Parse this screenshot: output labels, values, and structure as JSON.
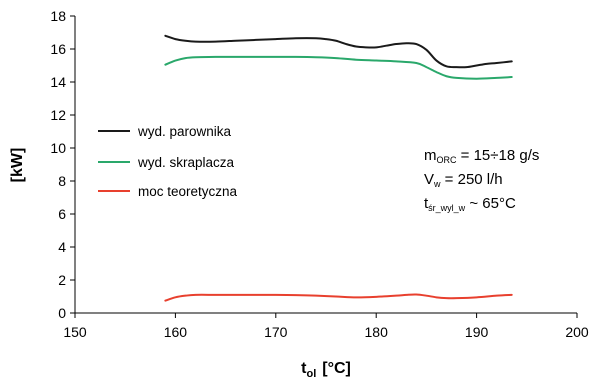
{
  "chart_data": {
    "type": "line",
    "xlabel": {
      "main": "t",
      "sub": "ol",
      "unit": "[°C]"
    },
    "ylabel": "[kW]",
    "xlim": [
      150,
      200
    ],
    "ylim": [
      0,
      18
    ],
    "x_ticks": [
      "150",
      "160",
      "170",
      "180",
      "190",
      "200"
    ],
    "y_ticks": [
      "0",
      "2",
      "4",
      "6",
      "8",
      "10",
      "12",
      "14",
      "16",
      "18"
    ],
    "grid": false,
    "legend_position": "left",
    "series": [
      {
        "name": "wyd. parownika",
        "color": "#1a1a1a",
        "x": [
          159,
          160,
          161,
          162,
          164,
          166,
          168,
          170,
          172,
          174,
          175,
          176,
          177,
          178,
          179,
          180,
          181,
          182,
          183,
          184,
          185,
          186,
          187,
          188,
          189,
          190,
          191,
          192,
          193.5
        ],
        "y": [
          16.8,
          16.6,
          16.5,
          16.45,
          16.45,
          16.5,
          16.55,
          16.6,
          16.65,
          16.65,
          16.6,
          16.5,
          16.3,
          16.15,
          16.1,
          16.1,
          16.2,
          16.3,
          16.35,
          16.3,
          15.95,
          15.3,
          14.95,
          14.9,
          14.9,
          15.0,
          15.1,
          15.15,
          15.25
        ]
      },
      {
        "name": "wyd. skraplacza",
        "color": "#2aa86b",
        "x": [
          159,
          160,
          161,
          162,
          164,
          166,
          168,
          170,
          172,
          174,
          176,
          178,
          180,
          182,
          184,
          185,
          186,
          187,
          188,
          190,
          192,
          193.5
        ],
        "y": [
          15.05,
          15.3,
          15.45,
          15.5,
          15.52,
          15.52,
          15.52,
          15.52,
          15.52,
          15.5,
          15.45,
          15.35,
          15.3,
          15.25,
          15.15,
          14.9,
          14.6,
          14.35,
          14.25,
          14.2,
          14.25,
          14.3
        ]
      },
      {
        "name": "moc teoretyczna",
        "color": "#e8402e",
        "x": [
          159,
          160,
          161,
          162,
          164,
          166,
          168,
          170,
          172,
          174,
          176,
          178,
          180,
          182,
          183,
          184,
          185,
          186,
          187,
          188,
          190,
          192,
          193.5
        ],
        "y": [
          0.75,
          0.95,
          1.05,
          1.1,
          1.1,
          1.1,
          1.1,
          1.1,
          1.08,
          1.05,
          1.0,
          0.95,
          0.98,
          1.05,
          1.1,
          1.12,
          1.05,
          0.95,
          0.9,
          0.9,
          0.95,
          1.05,
          1.1
        ]
      }
    ],
    "annotations": [
      {
        "main": "m",
        "sub": "ORC",
        "rest": " = 15÷18 g/s"
      },
      {
        "main": "V",
        "sub": "w",
        "rest": " = 250  l/h"
      },
      {
        "main": "t",
        "sub": "śr_wyl_w",
        "rest": " ~ 65°C"
      }
    ]
  }
}
